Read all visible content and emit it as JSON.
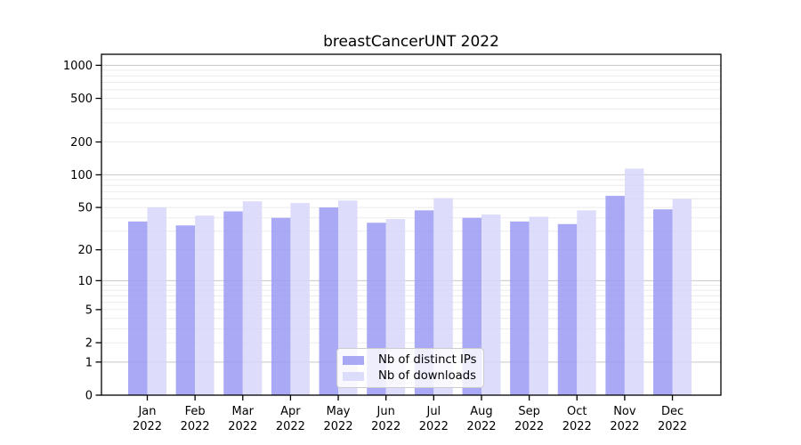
{
  "title": "breastCancerUNT 2022",
  "chart_data": {
    "type": "bar",
    "title": "breastCancerUNT 2022",
    "categories": [
      "Jan",
      "Feb",
      "Mar",
      "Apr",
      "May",
      "Jun",
      "Jul",
      "Aug",
      "Sep",
      "Oct",
      "Nov",
      "Dec"
    ],
    "x_label_second_line": "2022",
    "series": [
      {
        "name": "Nb of distinct IPs",
        "color": "#9a9af3",
        "values": [
          37,
          34,
          46,
          40,
          50,
          36,
          47,
          40,
          37,
          35,
          64,
          48
        ]
      },
      {
        "name": "Nb of downloads",
        "color": "#d7d7fa",
        "values": [
          50,
          42,
          57,
          55,
          58,
          39,
          61,
          43,
          41,
          47,
          114,
          60
        ]
      }
    ],
    "bar_opacity": 0.85,
    "yscale": "log10(1+x)",
    "yticks": [
      0,
      1,
      2,
      5,
      10,
      20,
      50,
      100,
      200,
      500,
      1000
    ],
    "ylim": [
      0,
      1260
    ],
    "xlabel": "",
    "ylabel": "",
    "grid": "horizontal",
    "grid_minor_color": "#ebebeb",
    "grid_major_color": "#c8c8c8",
    "axis_color": "#000000",
    "legend_position": "lower center"
  }
}
